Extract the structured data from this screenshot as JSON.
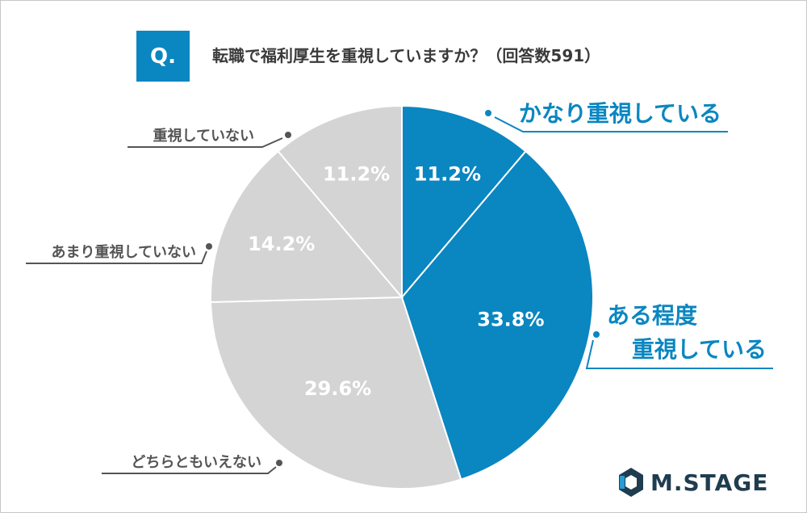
{
  "question": {
    "badge": "Q.",
    "text": "転職で福利厚生を重視していますか？（回答数591）"
  },
  "colors": {
    "accent": "#0a86c1",
    "gray": "#d4d4d4",
    "gray_label_text": "#555555",
    "white": "#ffffff"
  },
  "chart_data": {
    "type": "pie",
    "start": "12 o'clock",
    "direction": "clockwise",
    "slices": [
      {
        "label": "かなり重視している",
        "value": 11.2,
        "value_label": "11.2%",
        "color": "#0a86c1"
      },
      {
        "label": "ある程度重視している",
        "label_lines": [
          "ある程度",
          "重視している"
        ],
        "value": 33.8,
        "value_label": "33.8%",
        "color": "#0a86c1"
      },
      {
        "label": "どちらともいえない",
        "value": 29.6,
        "value_label": "29.6%",
        "color": "#d4d4d4"
      },
      {
        "label": "あまり重視していない",
        "value": 14.2,
        "value_label": "14.2%",
        "color": "#d4d4d4"
      },
      {
        "label": "重視していない",
        "value": 11.2,
        "value_label": "11.2%",
        "color": "#d4d4d4"
      }
    ]
  },
  "logo": {
    "text": "M.STAGE",
    "icon": "hexagon-logo-icon"
  }
}
